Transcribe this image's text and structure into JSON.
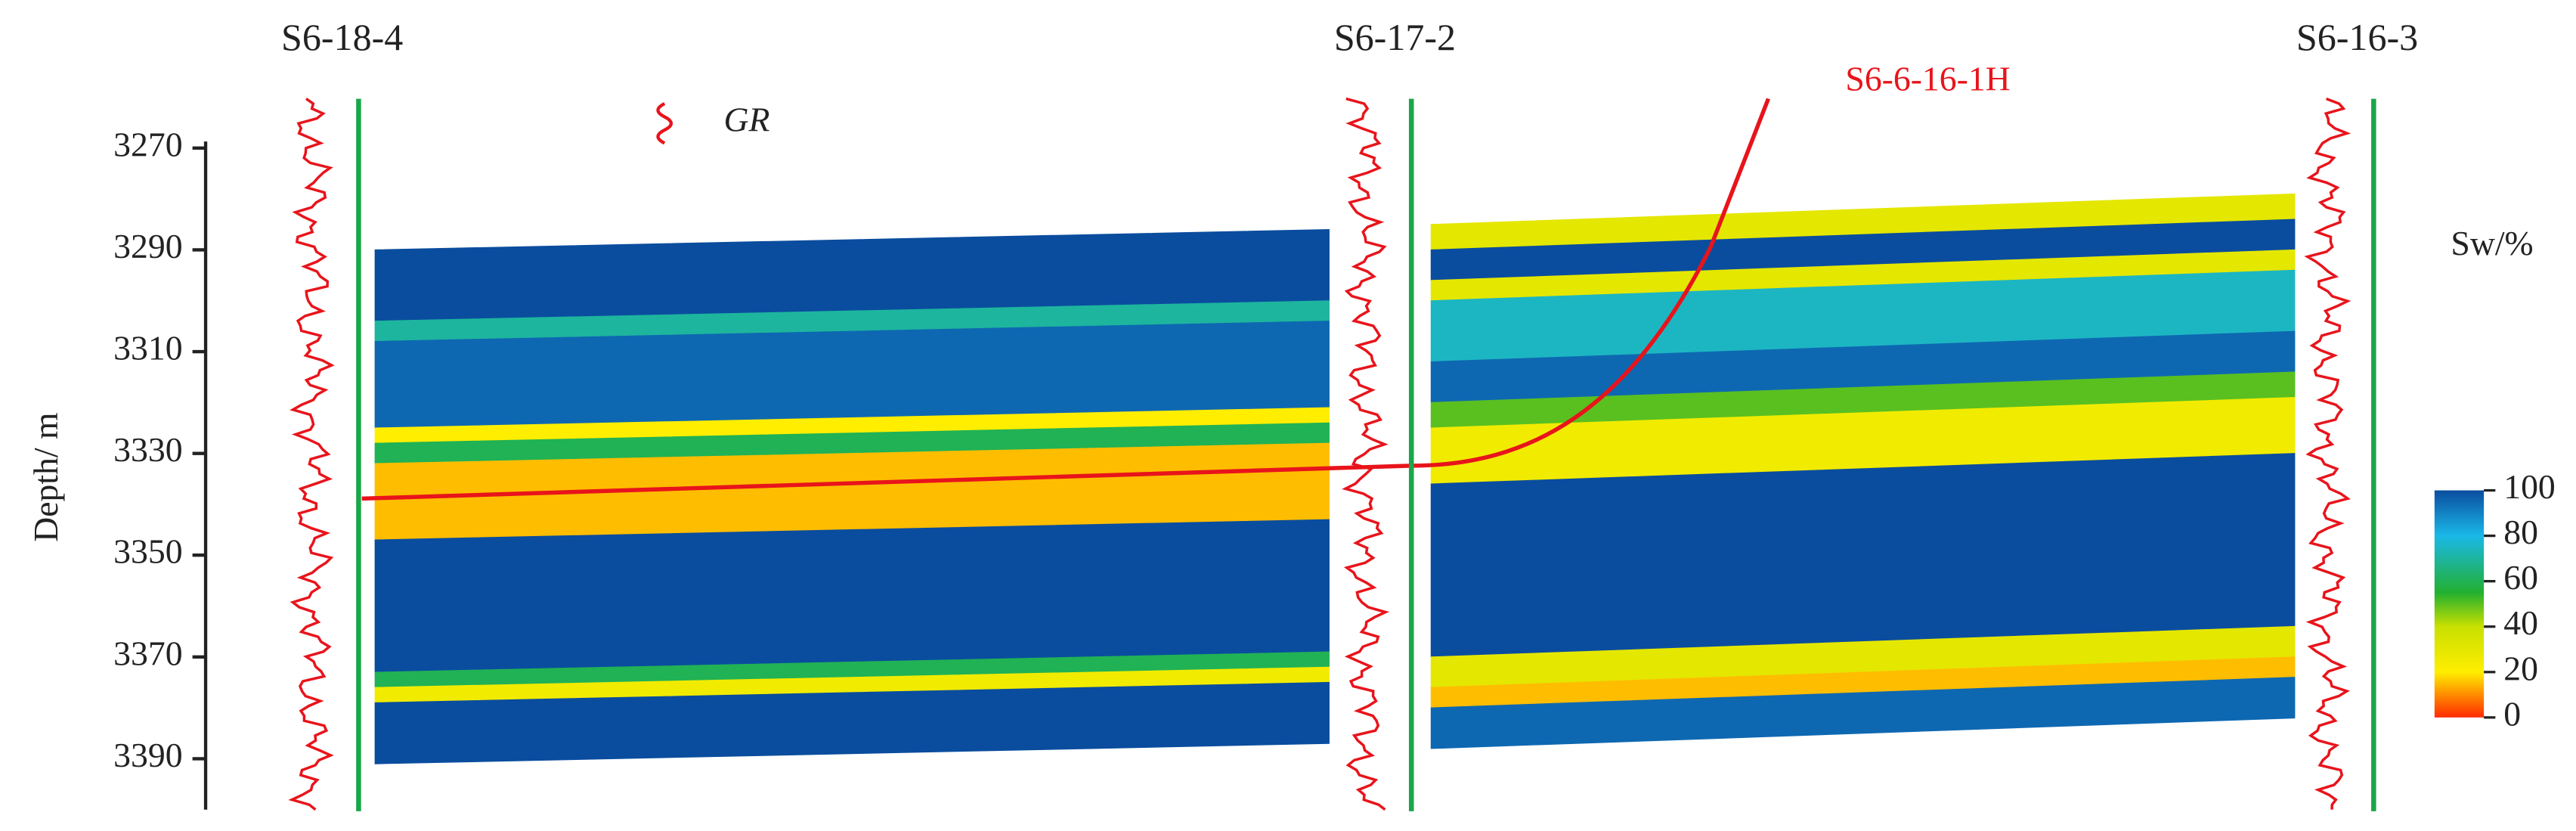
{
  "chart_data": {
    "type": "cross-section",
    "y_label": "Depth/ m",
    "ylim": [
      3270,
      3400
    ],
    "yticks": [
      3270,
      3290,
      3310,
      3330,
      3350,
      3370,
      3390
    ],
    "wells": [
      "S6-18-4",
      "S6-17-2",
      "S6-16-3"
    ],
    "horizontal_well": "S6-6-16-1H",
    "curve_label": "GR",
    "colorbar_title": "Sw/%",
    "clim": [
      0,
      100
    ],
    "cticks": [
      0,
      20,
      40,
      60,
      80,
      100
    ],
    "colorscale": [
      [
        0,
        "#ff2a00"
      ],
      [
        20,
        "#ffee00"
      ],
      [
        40,
        "#c8e000"
      ],
      [
        55,
        "#22b030"
      ],
      [
        80,
        "#1ab8e8"
      ],
      [
        100,
        "#0a4d9e"
      ]
    ],
    "panels": [
      {
        "shift": -4,
        "layers": [
          {
            "top": 3290,
            "bottom": 3304,
            "sw": 100
          },
          {
            "top": 3304,
            "bottom": 3308,
            "sw": 70
          },
          {
            "top": 3308,
            "bottom": 3325,
            "sw": 95
          },
          {
            "top": 3325,
            "bottom": 3328,
            "sw": 20
          },
          {
            "top": 3328,
            "bottom": 3332,
            "sw": 60
          },
          {
            "top": 3332,
            "bottom": 3347,
            "sw": 15
          },
          {
            "top": 3347,
            "bottom": 3373,
            "sw": 100
          },
          {
            "top": 3373,
            "bottom": 3376,
            "sw": 60
          },
          {
            "top": 3376,
            "bottom": 3379,
            "sw": 25
          },
          {
            "top": 3379,
            "bottom": 3391,
            "sw": 100
          }
        ]
      },
      {
        "shift": -6,
        "layers": [
          {
            "top": 3285,
            "bottom": 3290,
            "sw": 30
          },
          {
            "top": 3290,
            "bottom": 3296,
            "sw": 100
          },
          {
            "top": 3296,
            "bottom": 3300,
            "sw": 30
          },
          {
            "top": 3300,
            "bottom": 3312,
            "sw": 75
          },
          {
            "top": 3312,
            "bottom": 3320,
            "sw": 95
          },
          {
            "top": 3320,
            "bottom": 3325,
            "sw": 50
          },
          {
            "top": 3325,
            "bottom": 3336,
            "sw": 25
          },
          {
            "top": 3336,
            "bottom": 3370,
            "sw": 100
          },
          {
            "top": 3370,
            "bottom": 3376,
            "sw": 30
          },
          {
            "top": 3376,
            "bottom": 3380,
            "sw": 15
          },
          {
            "top": 3380,
            "bottom": 3388,
            "sw": 95
          }
        ]
      }
    ]
  }
}
